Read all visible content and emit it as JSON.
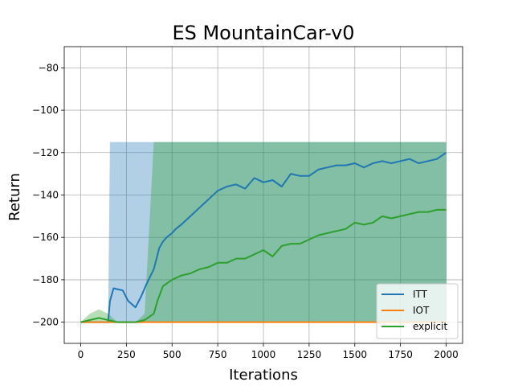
{
  "chart_data": {
    "type": "line",
    "title": "ES MountainCar-v0",
    "xlabel": "Iterations",
    "ylabel": "Return",
    "xlim": [
      -90,
      2090
    ],
    "ylim": [
      -210,
      -70
    ],
    "xticks": [
      0,
      250,
      500,
      750,
      1000,
      1250,
      1500,
      1750,
      2000
    ],
    "yticks": [
      -200,
      -180,
      -160,
      -140,
      -120,
      -100,
      -80
    ],
    "grid": true,
    "legend_position": "lower-right",
    "series": [
      {
        "name": "ITT",
        "color": "#1f77b4",
        "x": [
          0,
          150,
          160,
          180,
          230,
          260,
          300,
          330,
          360,
          400,
          430,
          450,
          470,
          500,
          520,
          550,
          600,
          650,
          700,
          750,
          800,
          850,
          900,
          950,
          1000,
          1050,
          1100,
          1150,
          1200,
          1250,
          1300,
          1350,
          1400,
          1450,
          1500,
          1550,
          1600,
          1650,
          1700,
          1750,
          1800,
          1850,
          1900,
          1950,
          2000
        ],
        "y": [
          -200,
          -200,
          -190,
          -184,
          -185,
          -190,
          -193,
          -188,
          -182,
          -175,
          -165,
          -162,
          -160,
          -158,
          -156,
          -154,
          -150,
          -146,
          -142,
          -138,
          -136,
          -135,
          -137,
          -132,
          -134,
          -133,
          -136,
          -130,
          -131,
          -131,
          -128,
          -127,
          -126,
          -126,
          -125,
          -127,
          -125,
          -124,
          -125,
          -124,
          -123,
          -125,
          -124,
          -123,
          -120
        ],
        "band_upper": [
          -200,
          -200,
          -115,
          -115,
          -115,
          -115,
          -115,
          -115,
          -115,
          -115,
          -115,
          -115,
          -115,
          -115,
          -115,
          -115,
          -115,
          -115,
          -115,
          -115,
          -115,
          -115,
          -115,
          -115,
          -115,
          -115,
          -115,
          -115,
          -115,
          -115,
          -115,
          -115,
          -115,
          -115,
          -115,
          -115,
          -115,
          -115,
          -115,
          -115,
          -115,
          -115,
          -115,
          -115,
          -115
        ],
        "band_lower": [
          -200,
          -200,
          -200,
          -200,
          -200,
          -200,
          -200,
          -200,
          -200,
          -200,
          -200,
          -200,
          -200,
          -200,
          -200,
          -200,
          -200,
          -200,
          -200,
          -200,
          -200,
          -200,
          -200,
          -200,
          -200,
          -200,
          -200,
          -200,
          -200,
          -200,
          -200,
          -200,
          -200,
          -200,
          -200,
          -200,
          -200,
          -200,
          -200,
          -200,
          -200,
          -200,
          -200,
          -200,
          -200
        ]
      },
      {
        "name": "IOT",
        "color": "#ff7f0e",
        "x": [
          0,
          500,
          1000,
          1500,
          2000
        ],
        "y": [
          -200,
          -200,
          -200,
          -200,
          -200
        ]
      },
      {
        "name": "explicit",
        "color": "#2ca02c",
        "x": [
          0,
          50,
          100,
          150,
          200,
          250,
          300,
          350,
          400,
          420,
          450,
          500,
          550,
          600,
          650,
          700,
          750,
          800,
          850,
          900,
          950,
          1000,
          1050,
          1100,
          1150,
          1200,
          1250,
          1300,
          1350,
          1400,
          1450,
          1500,
          1550,
          1600,
          1650,
          1700,
          1750,
          1800,
          1850,
          1900,
          1950,
          2000
        ],
        "y": [
          -200,
          -199,
          -198,
          -199,
          -200,
          -200,
          -200,
          -199,
          -196,
          -190,
          -183,
          -180,
          -178,
          -177,
          -175,
          -174,
          -172,
          -172,
          -170,
          -170,
          -168,
          -166,
          -169,
          -164,
          -163,
          -163,
          -161,
          -159,
          -158,
          -157,
          -156,
          -153,
          -154,
          -153,
          -150,
          -151,
          -150,
          -149,
          -148,
          -148,
          -147,
          -147
        ],
        "band_upper": [
          -200,
          -196,
          -194,
          -196,
          -200,
          -200,
          -200,
          -196,
          -115,
          -115,
          -115,
          -115,
          -115,
          -115,
          -115,
          -115,
          -115,
          -115,
          -115,
          -115,
          -115,
          -115,
          -115,
          -115,
          -115,
          -115,
          -115,
          -115,
          -115,
          -115,
          -115,
          -115,
          -115,
          -115,
          -115,
          -115,
          -115,
          -115,
          -115,
          -115,
          -115,
          -115
        ],
        "band_lower": [
          -200,
          -200,
          -200,
          -200,
          -200,
          -200,
          -200,
          -200,
          -200,
          -200,
          -200,
          -200,
          -200,
          -200,
          -200,
          -200,
          -200,
          -200,
          -200,
          -200,
          -200,
          -200,
          -200,
          -200,
          -200,
          -200,
          -200,
          -200,
          -200,
          -200,
          -200,
          -200,
          -200,
          -200,
          -200,
          -200,
          -200,
          -200,
          -200,
          -200,
          -200,
          -200
        ]
      }
    ]
  }
}
